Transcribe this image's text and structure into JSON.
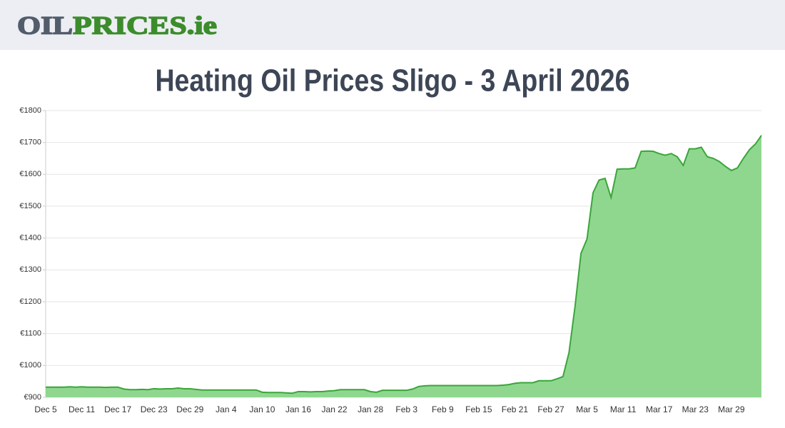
{
  "header": {
    "logo_left": "OIL",
    "logo_right": "PRICES.ie"
  },
  "chart_data": {
    "type": "area",
    "title": "Heating Oil Prices Sligo - 3 April 2026",
    "categories": [
      "Dec 5",
      null,
      null,
      null,
      null,
      null,
      "Dec 11",
      null,
      null,
      null,
      null,
      null,
      "Dec 17",
      null,
      null,
      null,
      null,
      null,
      "Dec 23",
      null,
      null,
      null,
      null,
      null,
      "Dec 29",
      null,
      null,
      null,
      null,
      null,
      "Jan 4",
      null,
      null,
      null,
      null,
      null,
      "Jan 10",
      null,
      null,
      null,
      null,
      null,
      "Jan 16",
      null,
      null,
      null,
      null,
      null,
      "Jan 22",
      null,
      null,
      null,
      null,
      null,
      "Jan 28",
      null,
      null,
      null,
      null,
      null,
      "Feb 3",
      null,
      null,
      null,
      null,
      null,
      "Feb 9",
      null,
      null,
      null,
      null,
      null,
      "Feb 15",
      null,
      null,
      null,
      null,
      null,
      "Feb 21",
      null,
      null,
      null,
      null,
      null,
      "Feb 27",
      null,
      null,
      null,
      null,
      null,
      "Mar 5",
      null,
      null,
      null,
      null,
      null,
      "Mar 11",
      null,
      null,
      null,
      null,
      null,
      "Mar 17",
      null,
      null,
      null,
      null,
      null,
      "Mar 23",
      null,
      null,
      null,
      null,
      null,
      "Mar 29",
      null,
      null,
      null,
      null,
      null
    ],
    "values": [
      932,
      932,
      932,
      932,
      933,
      932,
      933,
      932,
      932,
      932,
      931,
      932,
      932,
      926,
      924,
      924,
      925,
      924,
      927,
      926,
      927,
      927,
      929,
      927,
      927,
      925,
      923,
      923,
      923,
      923,
      923,
      923,
      923,
      923,
      923,
      923,
      916,
      915,
      915,
      915,
      914,
      913,
      918,
      918,
      917,
      918,
      918,
      920,
      921,
      924,
      924,
      924,
      924,
      924,
      918,
      916,
      922,
      922,
      922,
      922,
      922,
      926,
      934,
      936,
      937,
      937,
      937,
      937,
      937,
      937,
      937,
      937,
      937,
      937,
      937,
      937,
      938,
      940,
      944,
      946,
      946,
      946,
      952,
      952,
      952,
      958,
      965,
      1040,
      1184,
      1352,
      1397,
      1542,
      1582,
      1587,
      1527,
      1616,
      1617,
      1617,
      1620,
      1672,
      1673,
      1672,
      1665,
      1660,
      1665,
      1655,
      1628,
      1680,
      1680,
      1685,
      1655,
      1650,
      1640,
      1625,
      1612,
      1620,
      1650,
      1677,
      1695,
      1722
    ],
    "color": "#3aa53a",
    "fill_color": "#8fd78f",
    "ylim": [
      900,
      1800
    ],
    "yticks": [
      {
        "value": 900,
        "label": "€900"
      },
      {
        "value": 1000,
        "label": "€1000"
      },
      {
        "value": 1100,
        "label": "€1100"
      },
      {
        "value": 1200,
        "label": "€1200"
      },
      {
        "value": 1300,
        "label": "€1300"
      },
      {
        "value": 1400,
        "label": "€1400"
      },
      {
        "value": 1500,
        "label": "€1500"
      },
      {
        "value": 1600,
        "label": "€1600"
      },
      {
        "value": 1700,
        "label": "€1700"
      },
      {
        "value": 1800,
        "label": "€1800"
      }
    ],
    "grid": true
  }
}
